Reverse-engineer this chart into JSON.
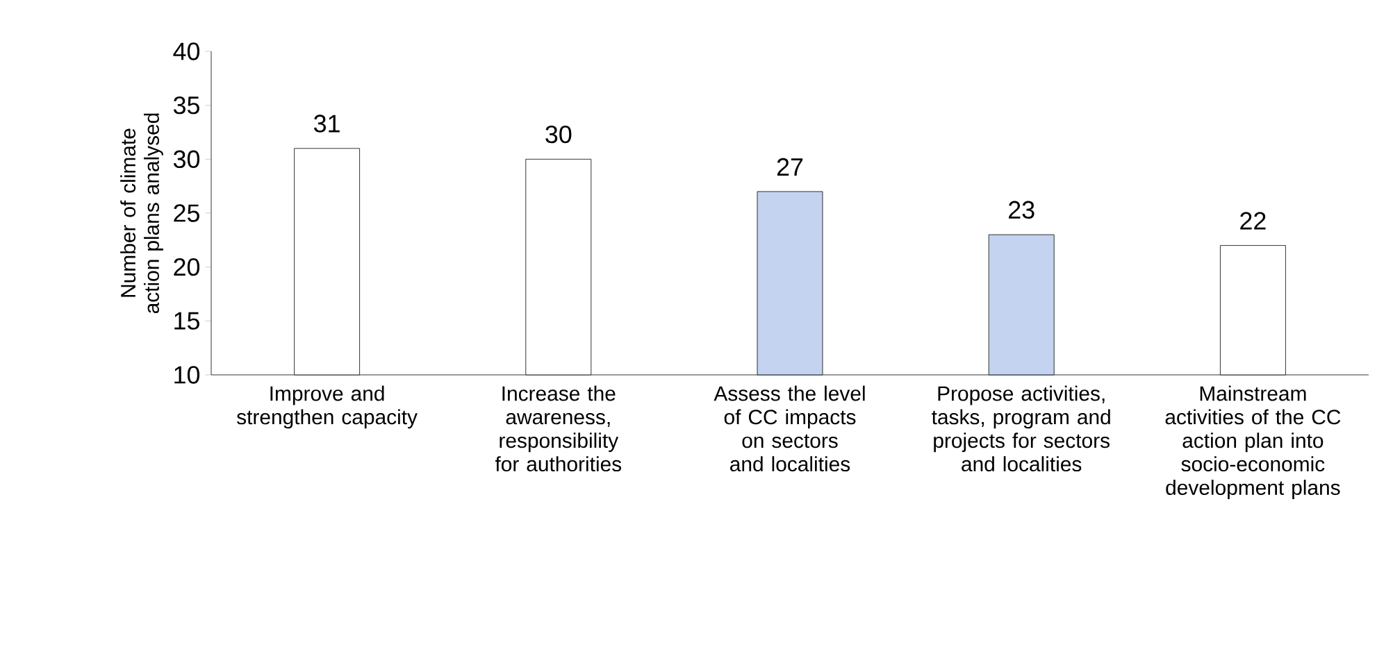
{
  "chart_data": {
    "type": "bar",
    "ylabel": "Number of climate action plans analysed",
    "categories": [
      "Improve and strengthen capacity",
      "Increase the awareness, responsibility for authorities",
      "Assess the level of CC impacts on sectors and localities",
      "Propose activities, tasks, program and projects for sectors and localities",
      "Mainstream activities of the CC action plan into socio-economic development plans"
    ],
    "values": [
      31,
      30,
      27,
      23,
      22
    ],
    "colors": [
      "#ffffff",
      "#ffffff",
      "#c3d3f0",
      "#c3d3f0",
      "#ffffff"
    ],
    "ylim": [
      10,
      40
    ],
    "yticks": [
      10,
      15,
      20,
      25,
      30,
      35,
      40
    ],
    "data_labels": true,
    "grid": false
  }
}
